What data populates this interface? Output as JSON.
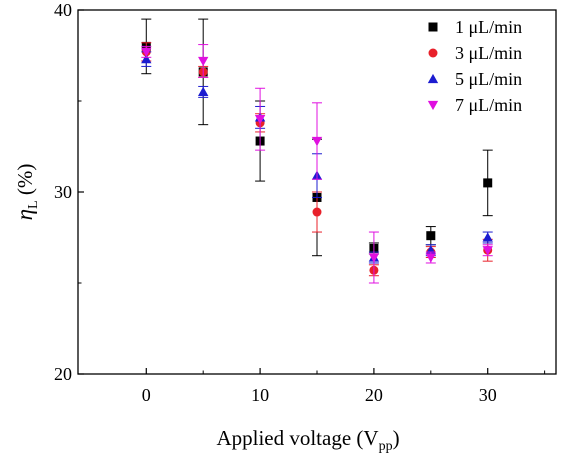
{
  "chart_data": {
    "type": "scatter",
    "xlabel": "Applied voltage (V",
    "xlabel_sub": "pp",
    "xlabel_end": ")",
    "ylabel": "η",
    "ylabel_sub": "L",
    "ylabel_unit": " (%)",
    "xlim": [
      -6,
      36
    ],
    "ylim": [
      20,
      40
    ],
    "xticks": [
      "0",
      "10",
      "20",
      "30"
    ],
    "yticks": [
      "20",
      "30",
      "40"
    ],
    "grid": false,
    "legend_position": "top-right",
    "series": [
      {
        "name": "1 μL/min",
        "color": "#000000",
        "marker": "square",
        "x": [
          0,
          5,
          10,
          15,
          20,
          25,
          30
        ],
        "y": [
          38.0,
          36.6,
          32.8,
          29.7,
          26.9,
          27.6,
          30.5
        ],
        "err": [
          1.5,
          2.9,
          2.2,
          3.2,
          0.3,
          0.5,
          1.8
        ]
      },
      {
        "name": "3 μL/min",
        "color": "#e8202a",
        "marker": "circle",
        "x": [
          0,
          5,
          10,
          15,
          20,
          25,
          30
        ],
        "y": [
          37.7,
          36.6,
          33.8,
          28.9,
          25.7,
          26.7,
          26.8
        ],
        "err": [
          0.5,
          0.3,
          0.5,
          1.1,
          0.3,
          0.3,
          0.6
        ]
      },
      {
        "name": "5 μL/min",
        "color": "#1c1cd0",
        "marker": "triangle-up",
        "x": [
          0,
          5,
          10,
          15,
          20,
          25,
          30
        ],
        "y": [
          37.3,
          35.5,
          34.1,
          30.9,
          26.4,
          26.8,
          27.5
        ],
        "err": [
          0.4,
          0.3,
          0.6,
          1.2,
          0.3,
          0.3,
          0.3
        ]
      },
      {
        "name": "7 μL/min",
        "color": "#e010e0",
        "marker": "triangle-down",
        "x": [
          0,
          5,
          10,
          15,
          20,
          25,
          30
        ],
        "y": [
          37.7,
          37.2,
          34.0,
          32.8,
          26.4,
          26.4,
          26.8
        ],
        "err": [
          0.3,
          0.9,
          1.7,
          2.1,
          1.4,
          0.3,
          0.3
        ]
      }
    ]
  }
}
